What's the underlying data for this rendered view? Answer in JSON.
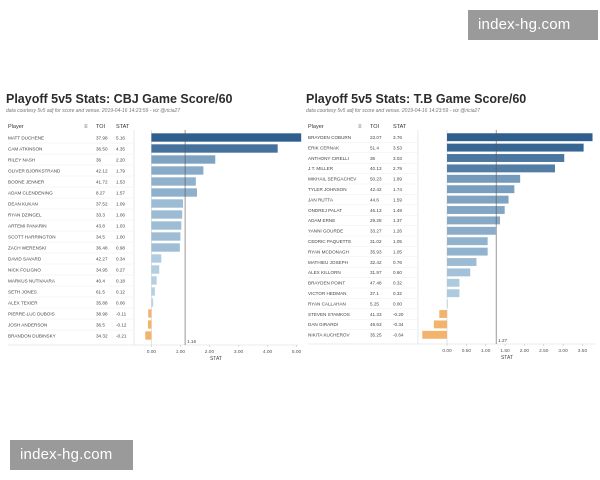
{
  "watermarks": {
    "top": "index-hg.com",
    "bottom": "index-hg.com"
  },
  "charts": [
    {
      "id": "cbj",
      "title": "Playoff 5v5 Stats: CBJ  Game Score/60",
      "subtitle": "data courtesy 5v5 adj for score and venue. 2019-04-16 14:23:59 - viz @ricia27",
      "headers": {
        "player": "Player",
        "toi": "TOI",
        "stat": "STAT"
      },
      "axis_label": "STAT",
      "ref_label": "1.16",
      "rows": [
        {
          "player": "MATT DUCHENE",
          "toi": "37.98",
          "stat": "5.16"
        },
        {
          "player": "CAM ATKINSON",
          "toi": "36.50",
          "stat": "4.35"
        },
        {
          "player": "RILEY NASH",
          "toi": "36",
          "stat": "2.20"
        },
        {
          "player": "OLIVER BJORKSTRAND",
          "toi": "42.12",
          "stat": "1.79"
        },
        {
          "player": "BOONE JENNER",
          "toi": "41.72",
          "stat": "1.53"
        },
        {
          "player": "ADAM CLENDENING",
          "toi": "8.27",
          "stat": "1.57"
        },
        {
          "player": "DEAN KUKAN",
          "toi": "37.52",
          "stat": "1.09"
        },
        {
          "player": "RYAN DZINGEL",
          "toi": "33.3",
          "stat": "1.06"
        },
        {
          "player": "ARTEMI PANARIN",
          "toi": "43.8",
          "stat": "1.03"
        },
        {
          "player": "SCOTT HARRINGTON",
          "toi": "34.5",
          "stat": "1.00"
        },
        {
          "player": "ZACH WERENSKI",
          "toi": "36.48",
          "stat": "0.98"
        },
        {
          "player": "DAVID SAVARD",
          "toi": "42.27",
          "stat": "0.34"
        },
        {
          "player": "NICK FOLIGNO",
          "toi": "34.95",
          "stat": "0.27"
        },
        {
          "player": "MARKUS NUTIVAARA",
          "toi": "40.4",
          "stat": "0.18"
        },
        {
          "player": "SETH JONES",
          "toi": "61.5",
          "stat": "0.12"
        },
        {
          "player": "ALEX TEXIER",
          "toi": "35.88",
          "stat": "0.06"
        },
        {
          "player": "PIERRE-LUC DUBOIS",
          "toi": "38.98",
          "stat": "-0.11"
        },
        {
          "player": "JOSH ANDERSON",
          "toi": "36.5",
          "stat": "-0.12"
        },
        {
          "player": "BRANDON DUBINSKY",
          "toi": "34.32",
          "stat": "-0.21"
        }
      ],
      "chart_data": {
        "type": "bar",
        "orientation": "horizontal",
        "title": "Playoff 5v5 Stats: CBJ  Game Score/60",
        "xlabel": "STAT",
        "xlim": [
          -0.6,
          5.05
        ],
        "ticks": [
          0,
          1,
          2,
          3,
          4,
          5
        ],
        "tick_labels": [
          "0.00",
          "1.00",
          "2.00",
          "3.00",
          "4.00",
          "5.00"
        ],
        "reference_line": 1.16,
        "categories": [
          "MATT DUCHENE",
          "CAM ATKINSON",
          "RILEY NASH",
          "OLIVER BJORKSTRAND",
          "BOONE JENNER",
          "ADAM CLENDENING",
          "DEAN KUKAN",
          "RYAN DZINGEL",
          "ARTEMI PANARIN",
          "SCOTT HARRINGTON",
          "ZACH WERENSKI",
          "DAVID SAVARD",
          "NICK FOLIGNO",
          "MARKUS NUTIVAARA",
          "SETH JONES",
          "ALEX TEXIER",
          "PIERRE-LUC DUBOIS",
          "JOSH ANDERSON",
          "BRANDON DUBINSKY"
        ],
        "values": [
          5.16,
          4.35,
          2.2,
          1.79,
          1.53,
          1.57,
          1.09,
          1.06,
          1.03,
          1.0,
          0.98,
          0.34,
          0.27,
          0.18,
          0.12,
          0.06,
          -0.11,
          -0.12,
          -0.21
        ],
        "colors": {
          "positive_high": "#2f5f8f",
          "positive_low": "#b9d4e6",
          "negative": "#f2b46c"
        }
      }
    },
    {
      "id": "tb",
      "title": "Playoff 5v5 Stats: T.B  Game Score/60",
      "subtitle": "data courtesy 5v5 adj for score and venue. 2019-04-16 14:23:59 - viz @ricia27",
      "headers": {
        "player": "Player",
        "toi": "TOI",
        "stat": "STAT"
      },
      "axis_label": "STAT",
      "ref_label": "1.27",
      "rows": [
        {
          "player": "BRAYDEN COBURN",
          "toi": "23.07",
          "stat": "3.76"
        },
        {
          "player": "ERIK CERNAK",
          "toi": "51.4",
          "stat": "3.53"
        },
        {
          "player": "ANTHONY CIRELLI",
          "toi": "36",
          "stat": "3.03"
        },
        {
          "player": "J.T. MILLER",
          "toi": "40.13",
          "stat": "2.79"
        },
        {
          "player": "MIKHAIL SERGACHEV",
          "toi": "50.23",
          "stat": "1.89"
        },
        {
          "player": "TYLER JOHNSON",
          "toi": "42.42",
          "stat": "1.74"
        },
        {
          "player": "JAN RUTTA",
          "toi": "44.6",
          "stat": "1.59"
        },
        {
          "player": "ONDREJ PALAT",
          "toi": "46.13",
          "stat": "1.49"
        },
        {
          "player": "ADAM ERNE",
          "toi": "29.28",
          "stat": "1.37"
        },
        {
          "player": "YANNI GOURDE",
          "toi": "33.27",
          "stat": "1.26"
        },
        {
          "player": "CEDRIC PAQUETTE",
          "toi": "31.02",
          "stat": "1.05"
        },
        {
          "player": "RYAN MCDONAGH",
          "toi": "35.93",
          "stat": "1.05"
        },
        {
          "player": "MATHIEU JOSEPH",
          "toi": "32.42",
          "stat": "0.76"
        },
        {
          "player": "ALEX KILLORN",
          "toi": "31.97",
          "stat": "0.60"
        },
        {
          "player": "BRAYDEN POINT",
          "toi": "47.48",
          "stat": "0.32"
        },
        {
          "player": "VICTOR HEDMAN",
          "toi": "37.1",
          "stat": "0.32"
        },
        {
          "player": "RYAN CALLAHAN",
          "toi": "5.25",
          "stat": "0.00"
        },
        {
          "player": "STEVEN STAMKOS",
          "toi": "41.33",
          "stat": "-0.20"
        },
        {
          "player": "DAN GIRARDI",
          "toi": "49.63",
          "stat": "-0.34"
        },
        {
          "player": "NIKITA KUCHEROV",
          "toi": "35.25",
          "stat": "-0.64"
        }
      ],
      "chart_data": {
        "type": "bar",
        "orientation": "horizontal",
        "title": "Playoff 5v5 Stats: T.B  Game Score/60",
        "xlabel": "STAT",
        "xlim": [
          -0.75,
          3.85
        ],
        "ticks": [
          0,
          0.5,
          1,
          1.5,
          2,
          2.5,
          3,
          3.5
        ],
        "tick_labels": [
          "0.00",
          "0.50",
          "1.00",
          "1.50",
          "2.00",
          "2.50",
          "3.00",
          "3.50"
        ],
        "reference_line": 1.27,
        "categories": [
          "BRAYDEN COBURN",
          "ERIK CERNAK",
          "ANTHONY CIRELLI",
          "J.T. MILLER",
          "MIKHAIL SERGACHEV",
          "TYLER JOHNSON",
          "JAN RUTTA",
          "ONDREJ PALAT",
          "ADAM ERNE",
          "YANNI GOURDE",
          "CEDRIC PAQUETTE",
          "RYAN MCDONAGH",
          "MATHIEU JOSEPH",
          "ALEX KILLORN",
          "BRAYDEN POINT",
          "VICTOR HEDMAN",
          "RYAN CALLAHAN",
          "STEVEN STAMKOS",
          "DAN GIRARDI",
          "NIKITA KUCHEROV"
        ],
        "values": [
          3.76,
          3.53,
          3.03,
          2.79,
          1.89,
          1.74,
          1.59,
          1.49,
          1.37,
          1.26,
          1.05,
          1.05,
          0.76,
          0.6,
          0.32,
          0.32,
          0.0,
          -0.2,
          -0.34,
          -0.64
        ],
        "colors": {
          "positive_high": "#2f5f8f",
          "positive_low": "#b9d4e6",
          "negative": "#f2b46c"
        }
      }
    }
  ]
}
